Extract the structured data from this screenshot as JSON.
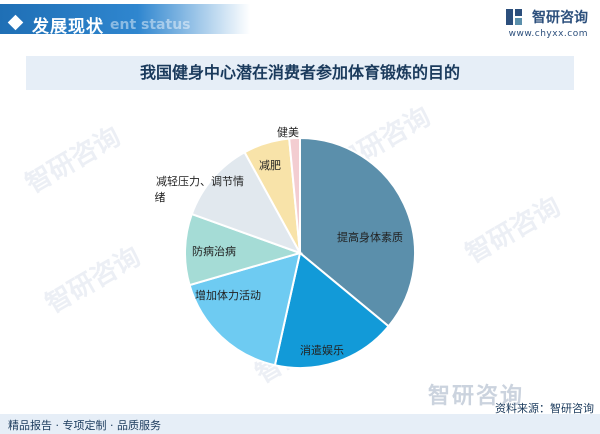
{
  "header": {
    "section_title": "发展现状",
    "section_subtitle": "ent status",
    "brand_name": "智研咨询",
    "brand_url": "www.chyxx.com"
  },
  "watermark": "智研咨询",
  "chart_data": {
    "type": "pie",
    "title": "我国健身中心潜在消费者参加体育锻炼的目的",
    "slices": [
      {
        "label": "提高身体素质",
        "value": 36.0,
        "color": "#5b8fab"
      },
      {
        "label": "消遣娱乐",
        "value": 17.5,
        "color": "#129ad8"
      },
      {
        "label": "增加体力活动",
        "value": 17.0,
        "color": "#6ecbf2"
      },
      {
        "label": "防病治病",
        "value": 10.0,
        "color": "#a5dcd6"
      },
      {
        "label": "减轻压力、调节情绪",
        "value": 11.5,
        "color": "#e1e8ee"
      },
      {
        "label": "减肥",
        "value": 6.5,
        "color": "#f8e3a9"
      },
      {
        "label": "健美",
        "value": 1.5,
        "color": "#f3cdd1"
      }
    ],
    "legend": "none"
  },
  "footer": {
    "left": "精品报告 · 专项定制 · 品质服务",
    "source": "资料来源：智研咨询"
  }
}
